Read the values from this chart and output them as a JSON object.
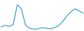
{
  "x": [
    0,
    1,
    2,
    3,
    4,
    5,
    6,
    7,
    8,
    9,
    10,
    11,
    12,
    13,
    14,
    15,
    16,
    17,
    18,
    19,
    20
  ],
  "y": [
    12,
    18,
    14,
    20,
    85,
    72,
    18,
    8,
    5,
    6,
    10,
    8,
    6,
    10,
    16,
    30,
    48,
    62,
    72,
    65,
    58
  ],
  "line_color": "#2196c4",
  "linewidth": 0.8,
  "background_color": "#ffffff",
  "ylim_min": 0,
  "ylim_max": 100
}
